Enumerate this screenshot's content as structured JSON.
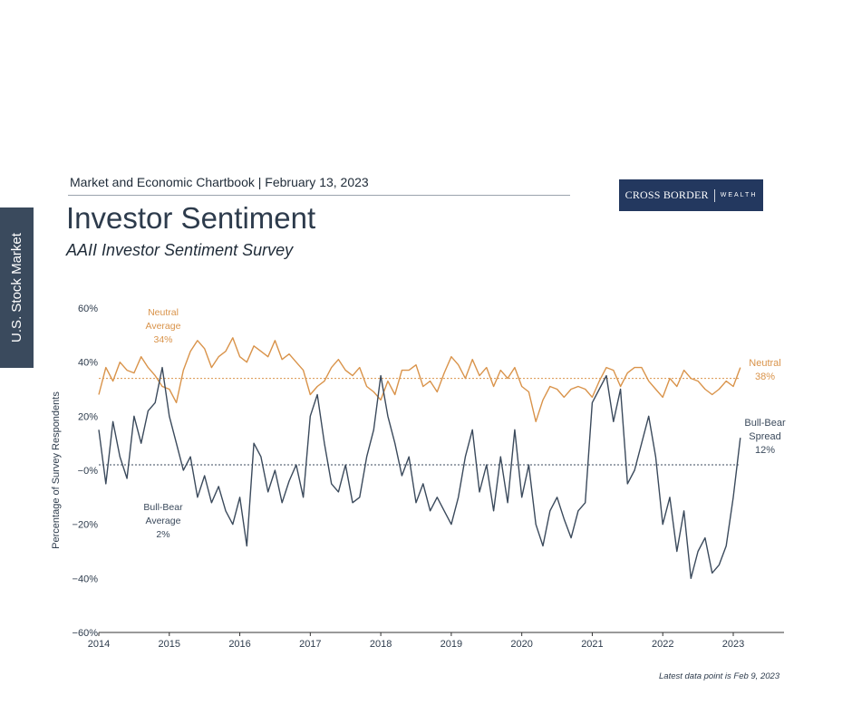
{
  "side_tab": "U.S. Stock Market",
  "header": {
    "top_line": "Market and Economic Chartbook | February 13, 2023",
    "title": "Investor Sentiment",
    "subtitle": "AAII Investor Sentiment Survey",
    "logo_main": "CROSS BORDER",
    "logo_sub": "WEALTH"
  },
  "footnote": "Latest data point is Feb 9, 2023",
  "colors": {
    "neutral": "#d9934a",
    "spread": "#3b4a5c",
    "brand": "#23385f"
  },
  "chart_data": {
    "type": "line",
    "ylabel": "Percentage of Survey Respondents",
    "xlabel": "",
    "x_ticks": [
      "2014",
      "2015",
      "2016",
      "2017",
      "2018",
      "2019",
      "2020",
      "2021",
      "2022",
      "2023"
    ],
    "y_ticks": [
      "60%",
      "40%",
      "20%",
      "−0%",
      "−20%",
      "−40%",
      "−60%"
    ],
    "y_tick_values": [
      60,
      40,
      20,
      0,
      -20,
      -40,
      -60
    ],
    "xlim": [
      2014.0,
      2023.72
    ],
    "ylim": [
      -60,
      60
    ],
    "grid": false,
    "reference_lines": [
      {
        "series": "Neutral",
        "value": 34,
        "label": [
          "Neutral",
          "Average",
          "34%"
        ]
      },
      {
        "series": "Bull-Bear Spread",
        "value": 2,
        "label": [
          "Bull-Bear",
          "Average",
          "2%"
        ]
      }
    ],
    "end_labels": [
      {
        "series": "Neutral",
        "lines": [
          "Neutral",
          "38%"
        ]
      },
      {
        "series": "Bull-Bear Spread",
        "lines": [
          "Bull-Bear",
          "Spread",
          "12%"
        ]
      }
    ],
    "series": [
      {
        "name": "Neutral",
        "x": [
          2014.0,
          2014.1,
          2014.2,
          2014.3,
          2014.4,
          2014.5,
          2014.6,
          2014.7,
          2014.8,
          2014.9,
          2015.0,
          2015.1,
          2015.2,
          2015.3,
          2015.4,
          2015.5,
          2015.6,
          2015.7,
          2015.8,
          2015.9,
          2016.0,
          2016.1,
          2016.2,
          2016.3,
          2016.4,
          2016.5,
          2016.6,
          2016.7,
          2016.8,
          2016.9,
          2017.0,
          2017.1,
          2017.2,
          2017.3,
          2017.4,
          2017.5,
          2017.6,
          2017.7,
          2017.8,
          2017.9,
          2018.0,
          2018.1,
          2018.2,
          2018.3,
          2018.4,
          2018.5,
          2018.6,
          2018.7,
          2018.8,
          2018.9,
          2019.0,
          2019.1,
          2019.2,
          2019.3,
          2019.4,
          2019.5,
          2019.6,
          2019.7,
          2019.8,
          2019.9,
          2020.0,
          2020.1,
          2020.2,
          2020.3,
          2020.4,
          2020.5,
          2020.6,
          2020.7,
          2020.8,
          2020.9,
          2021.0,
          2021.1,
          2021.2,
          2021.3,
          2021.4,
          2021.5,
          2021.6,
          2021.7,
          2021.8,
          2021.9,
          2022.0,
          2022.1,
          2022.2,
          2022.3,
          2022.4,
          2022.5,
          2022.6,
          2022.7,
          2022.8,
          2022.9,
          2023.0,
          2023.1
        ],
        "values": [
          28,
          38,
          33,
          40,
          37,
          36,
          42,
          38,
          35,
          31,
          30,
          25,
          37,
          44,
          48,
          45,
          38,
          42,
          44,
          49,
          42,
          40,
          46,
          44,
          42,
          48,
          41,
          43,
          40,
          37,
          28,
          31,
          33,
          38,
          41,
          37,
          35,
          38,
          31,
          29,
          26,
          33,
          28,
          37,
          37,
          39,
          31,
          33,
          29,
          36,
          42,
          39,
          34,
          41,
          35,
          38,
          31,
          37,
          34,
          38,
          31,
          29,
          18,
          26,
          31,
          30,
          27,
          30,
          31,
          30,
          27,
          33,
          38,
          37,
          31,
          36,
          38,
          38,
          33,
          30,
          27,
          34,
          31,
          37,
          34,
          33,
          30,
          28,
          30,
          33,
          31,
          38
        ]
      },
      {
        "name": "Bull-Bear Spread",
        "x": [
          2014.0,
          2014.1,
          2014.2,
          2014.3,
          2014.4,
          2014.5,
          2014.6,
          2014.7,
          2014.8,
          2014.9,
          2015.0,
          2015.1,
          2015.2,
          2015.3,
          2015.4,
          2015.5,
          2015.6,
          2015.7,
          2015.8,
          2015.9,
          2016.0,
          2016.1,
          2016.2,
          2016.3,
          2016.4,
          2016.5,
          2016.6,
          2016.7,
          2016.8,
          2016.9,
          2017.0,
          2017.1,
          2017.2,
          2017.3,
          2017.4,
          2017.5,
          2017.6,
          2017.7,
          2017.8,
          2017.9,
          2018.0,
          2018.1,
          2018.2,
          2018.3,
          2018.4,
          2018.5,
          2018.6,
          2018.7,
          2018.8,
          2018.9,
          2019.0,
          2019.1,
          2019.2,
          2019.3,
          2019.4,
          2019.5,
          2019.6,
          2019.7,
          2019.8,
          2019.9,
          2020.0,
          2020.1,
          2020.2,
          2020.3,
          2020.4,
          2020.5,
          2020.6,
          2020.7,
          2020.8,
          2020.9,
          2021.0,
          2021.1,
          2021.2,
          2021.3,
          2021.4,
          2021.5,
          2021.6,
          2021.7,
          2021.8,
          2021.9,
          2022.0,
          2022.1,
          2022.2,
          2022.3,
          2022.4,
          2022.5,
          2022.6,
          2022.7,
          2022.8,
          2022.9,
          2023.0,
          2023.1
        ],
        "values": [
          15,
          -5,
          18,
          5,
          -3,
          20,
          10,
          22,
          25,
          38,
          20,
          10,
          0,
          5,
          -10,
          -2,
          -12,
          -6,
          -15,
          -20,
          -10,
          -28,
          10,
          5,
          -8,
          0,
          -12,
          -4,
          2,
          -10,
          20,
          28,
          10,
          -5,
          -8,
          2,
          -12,
          -10,
          5,
          15,
          35,
          20,
          10,
          -2,
          5,
          -12,
          -5,
          -15,
          -10,
          -15,
          -20,
          -10,
          5,
          15,
          -8,
          2,
          -15,
          5,
          -12,
          15,
          -10,
          2,
          -20,
          -28,
          -15,
          -10,
          -18,
          -25,
          -15,
          -12,
          25,
          30,
          35,
          18,
          30,
          -5,
          0,
          10,
          20,
          5,
          -20,
          -10,
          -30,
          -15,
          -40,
          -30,
          -25,
          -38,
          -35,
          -28,
          -10,
          12
        ]
      }
    ]
  }
}
